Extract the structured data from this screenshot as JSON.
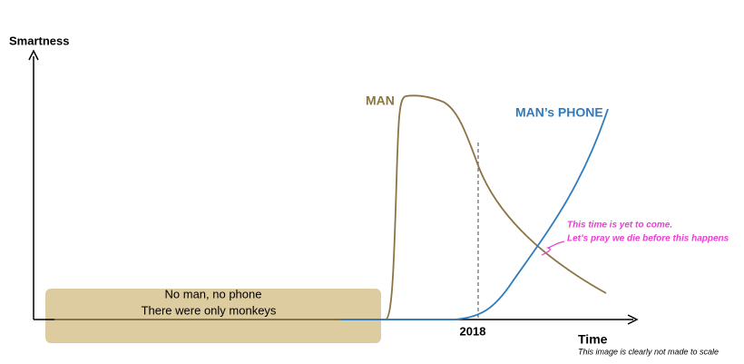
{
  "axes": {
    "y_label": "Smartness",
    "x_label": "Time"
  },
  "curves": {
    "man": "MAN",
    "phone": "MAN’s PHONE"
  },
  "marker": "2018",
  "box": {
    "line1": "No man, no phone",
    "line2": "There were only monkeys"
  },
  "note": {
    "line1": "This time is yet to come.",
    "line2": "Let’s pray we die before this happens"
  },
  "footnote": "This image is clearly not made to scale"
}
